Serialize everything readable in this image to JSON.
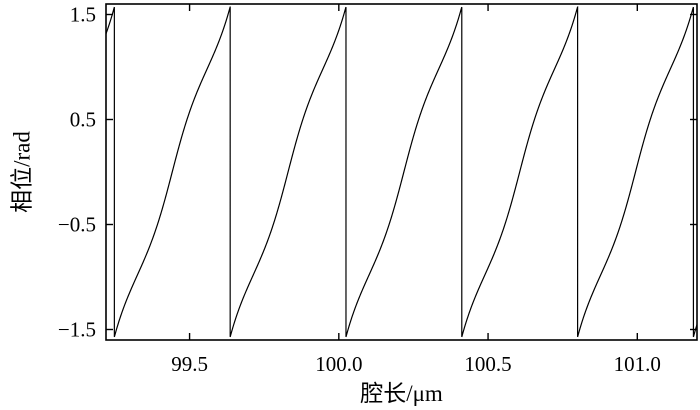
{
  "chart_data": {
    "type": "line",
    "title": "",
    "xlabel": "腔长/μm",
    "ylabel": "相位/rad",
    "xlim": [
      99.22,
      101.2
    ],
    "ylim": [
      -1.6,
      1.6
    ],
    "xticks": [
      99.5,
      100.0,
      100.5,
      101.0
    ],
    "xtick_labels": [
      "99.5",
      "100.0",
      "100.5",
      "101.0"
    ],
    "yticks": [
      -1.5,
      -0.5,
      0.5,
      1.5
    ],
    "ytick_labels": [
      "−1.5",
      "−0.5",
      "0.5",
      "1.5"
    ],
    "grid": false,
    "legend": "none",
    "line_color": "#000000",
    "series": [
      {
        "period_um": 0.3878,
        "phase_wraps_at_um": [
          99.248,
          99.636,
          100.024,
          100.412,
          100.8,
          101.188
        ],
        "phase_range_rad": [
          -1.5708,
          1.5708
        ],
        "points": [
          {
            "x": 99.22,
            "y": 1.15
          },
          {
            "x": 99.247,
            "y": 1.5708
          },
          {
            "x": 99.249,
            "y": -1.5708
          },
          {
            "x": 99.35,
            "y": -0.92
          },
          {
            "x": 99.442,
            "y": 0.0
          },
          {
            "x": 99.54,
            "y": 0.92
          },
          {
            "x": 99.635,
            "y": 1.5708
          },
          {
            "x": 99.637,
            "y": -1.5708
          },
          {
            "x": 99.73,
            "y": -0.92
          },
          {
            "x": 99.83,
            "y": 0.0
          },
          {
            "x": 99.93,
            "y": 0.92
          },
          {
            "x": 100.023,
            "y": 1.5708
          },
          {
            "x": 100.025,
            "y": -1.5708
          },
          {
            "x": 100.12,
            "y": -0.92
          },
          {
            "x": 100.218,
            "y": 0.0
          },
          {
            "x": 100.31,
            "y": 0.92
          },
          {
            "x": 100.411,
            "y": 1.5708
          },
          {
            "x": 100.413,
            "y": -1.5708
          },
          {
            "x": 100.51,
            "y": -0.92
          },
          {
            "x": 100.606,
            "y": 0.0
          },
          {
            "x": 100.7,
            "y": 0.92
          },
          {
            "x": 100.799,
            "y": 1.5708
          },
          {
            "x": 100.801,
            "y": -1.5708
          },
          {
            "x": 100.9,
            "y": -0.92
          },
          {
            "x": 100.994,
            "y": 0.0
          },
          {
            "x": 101.09,
            "y": 0.92
          },
          {
            "x": 101.187,
            "y": 1.5708
          },
          {
            "x": 101.189,
            "y": -1.5708
          },
          {
            "x": 101.2,
            "y": -1.35
          }
        ]
      }
    ]
  }
}
